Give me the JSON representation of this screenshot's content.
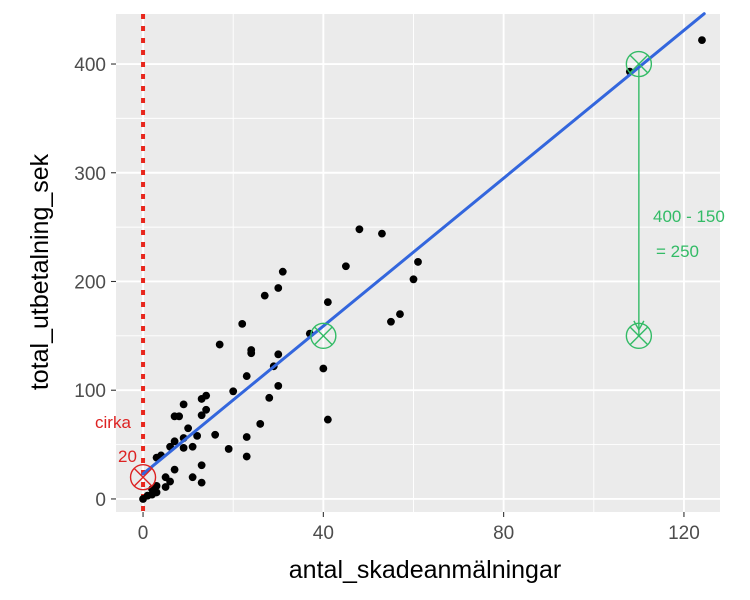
{
  "chart_data": {
    "type": "scatter",
    "xlabel": "antal_skadeanmälningar",
    "ylabel": "total_utbetalning_sek",
    "xlim": [
      -6,
      128
    ],
    "ylim": [
      -12,
      446
    ],
    "x_ticks": [
      0,
      40,
      80,
      120
    ],
    "y_ticks": [
      0,
      100,
      200,
      300,
      400
    ],
    "x_tick_labels": [
      "0",
      "40",
      "80",
      "120"
    ],
    "y_tick_labels": [
      "0",
      "100",
      "200",
      "300",
      "400"
    ],
    "grid": true,
    "colors": {
      "panel_bg": "#ebebeb",
      "grid": "#ffffff",
      "points": "#000000",
      "regression": "#3366dd",
      "vline": "#e8271d",
      "green": "#33bb66",
      "red_annotation": "#dd2222"
    },
    "points": [
      [
        124,
        422
      ],
      [
        108,
        393
      ],
      [
        61,
        218
      ],
      [
        60,
        202
      ],
      [
        57,
        170
      ],
      [
        55,
        163
      ],
      [
        53,
        244
      ],
      [
        48,
        248
      ],
      [
        45,
        214
      ],
      [
        41,
        181
      ],
      [
        41,
        73
      ],
      [
        40,
        120
      ],
      [
        37,
        152
      ],
      [
        31,
        209
      ],
      [
        30,
        194
      ],
      [
        30,
        133
      ],
      [
        30,
        104
      ],
      [
        29,
        122
      ],
      [
        27,
        187
      ],
      [
        28,
        93
      ],
      [
        26,
        69
      ],
      [
        24,
        137
      ],
      [
        24,
        134
      ],
      [
        23,
        113
      ],
      [
        23,
        57
      ],
      [
        23,
        39
      ],
      [
        22,
        161
      ],
      [
        20,
        99
      ],
      [
        19,
        46
      ],
      [
        17,
        142
      ],
      [
        16,
        59
      ],
      [
        14,
        95
      ],
      [
        14,
        82
      ],
      [
        13,
        92
      ],
      [
        13,
        77
      ],
      [
        13,
        31
      ],
      [
        13,
        15
      ],
      [
        12,
        58
      ],
      [
        11,
        48
      ],
      [
        11,
        20
      ],
      [
        10,
        65
      ],
      [
        9,
        87
      ],
      [
        9,
        56
      ],
      [
        9,
        47
      ],
      [
        8,
        76
      ],
      [
        7,
        76
      ],
      [
        7,
        53
      ],
      [
        7,
        27
      ],
      [
        6,
        48
      ],
      [
        6,
        16
      ],
      [
        5,
        20
      ],
      [
        5,
        11
      ],
      [
        4,
        40
      ],
      [
        3,
        38
      ],
      [
        3,
        12
      ],
      [
        3,
        6
      ],
      [
        2,
        9
      ],
      [
        2,
        4
      ],
      [
        1,
        3
      ],
      [
        0,
        0
      ]
    ],
    "regression": {
      "intercept": 23,
      "slope": 3.4,
      "x_range": [
        0,
        124.5
      ]
    },
    "vline": {
      "x": 0
    },
    "markers": [
      {
        "x": 0,
        "y": 20,
        "color": "red"
      },
      {
        "x": 40,
        "y": 150,
        "color": "green"
      },
      {
        "x": 110,
        "y": 400,
        "color": "green"
      },
      {
        "x": 110,
        "y": 150,
        "color": "green"
      }
    ],
    "residual_segment": {
      "x": 110,
      "y_from": 400,
      "y_to": 150
    },
    "annotations": {
      "left_line1": "cirka",
      "left_line2": "20",
      "right_line1": "400 - 150",
      "right_line2": "= 250"
    }
  }
}
